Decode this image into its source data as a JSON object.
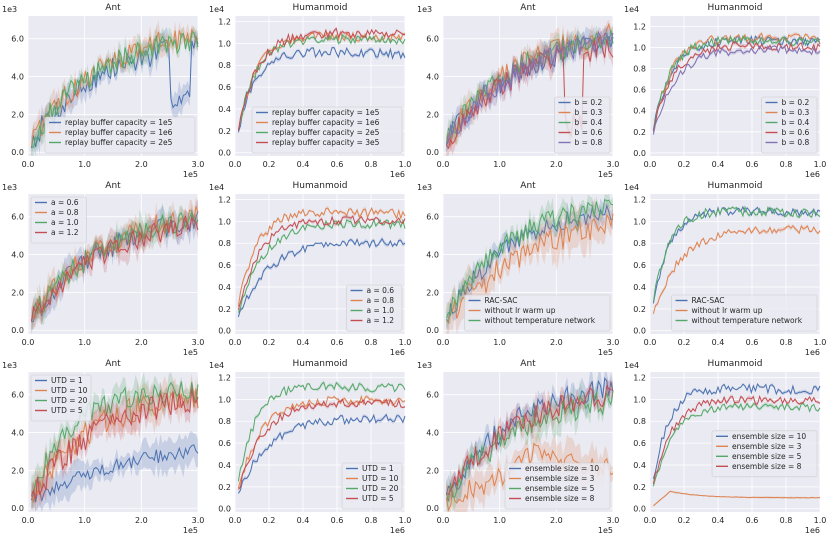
{
  "figure": {
    "rows": 3,
    "cols": 4
  },
  "chart_data": [
    {
      "type": "line",
      "title": "Ant",
      "x_exp": "1e5",
      "y_exp": "1e3",
      "xlim": [
        0,
        3.0
      ],
      "ylim": [
        -0.2,
        7.2
      ],
      "xticks": [
        0.0,
        1.0,
        2.0,
        3.0
      ],
      "xtick_labels": [
        "0.0",
        "1.0",
        "2.0",
        "3.0"
      ],
      "yticks": [
        0,
        2,
        4,
        6
      ],
      "ytick_labels": [
        "0.0",
        "2.0",
        "4.0",
        "6.0"
      ],
      "legend_pos": "lower-right",
      "series": [
        {
          "name": "replay buffer capacity = 1e5",
          "color": "#4c72b0",
          "final": 5.6,
          "k": 0.75,
          "band": 0.7,
          "noise": 0.12,
          "dip": [
            2.7,
            3.0,
            2.8
          ]
        },
        {
          "name": "replay buffer capacity = 1e6",
          "color": "#dd8452",
          "final": 6.2,
          "k": 0.75,
          "band": 0.6,
          "noise": 0.1
        },
        {
          "name": "replay buffer capacity = 2e5",
          "color": "#55a868",
          "final": 6.0,
          "k": 0.8,
          "band": 0.6,
          "noise": 0.1
        }
      ]
    },
    {
      "type": "line",
      "title": "Humanmoid",
      "x_exp": "1e6",
      "y_exp": "1e4",
      "xlim": [
        0,
        1.0
      ],
      "ylim": [
        -0.03,
        1.25
      ],
      "xticks": [
        0.0,
        0.2,
        0.4,
        0.6,
        0.8,
        1.0
      ],
      "xtick_labels": [
        "0.0",
        "0.2",
        "0.4",
        "0.6",
        "0.8",
        "1.0"
      ],
      "yticks": [
        0.0,
        0.2,
        0.4,
        0.6,
        0.8,
        1.0,
        1.2
      ],
      "ytick_labels": [
        "0.0",
        "0.2",
        "0.4",
        "0.6",
        "0.8",
        "1.0",
        "1.2"
      ],
      "legend_pos": "lower-right",
      "series": [
        {
          "name": "replay buffer capacity = 1e5",
          "color": "#4c72b0",
          "final": 0.9,
          "k": 3.2,
          "band": 0.12,
          "noise": 0.05
        },
        {
          "name": "replay buffer capacity = 1e6",
          "color": "#dd8452",
          "final": 1.05,
          "k": 3.0,
          "band": 0.12,
          "noise": 0.04
        },
        {
          "name": "replay buffer capacity = 2e5",
          "color": "#55a868",
          "final": 1.02,
          "k": 3.0,
          "band": 0.12,
          "noise": 0.04
        },
        {
          "name": "replay buffer capacity = 3e5",
          "color": "#c44e52",
          "final": 1.08,
          "k": 2.8,
          "band": 0.12,
          "noise": 0.04
        }
      ]
    },
    {
      "type": "line",
      "title": "Ant",
      "x_exp": "1e5",
      "y_exp": "1e3",
      "xlim": [
        0,
        3.0
      ],
      "ylim": [
        -0.2,
        7.2
      ],
      "xticks": [
        0.0,
        1.0,
        2.0,
        3.0
      ],
      "xtick_labels": [
        "0.0",
        "1.0",
        "2.0",
        "3.0"
      ],
      "yticks": [
        0,
        2,
        4,
        6
      ],
      "ytick_labels": [
        "0.0",
        "2.0",
        "4.0",
        "6.0"
      ],
      "legend_pos": "lower-right",
      "series": [
        {
          "name": "b = 0.2",
          "color": "#4c72b0",
          "final": 5.8,
          "k": 0.75,
          "band": 0.6,
          "noise": 0.1
        },
        {
          "name": "b = 0.3",
          "color": "#dd8452",
          "final": 6.2,
          "k": 0.75,
          "band": 0.6,
          "noise": 0.1
        },
        {
          "name": "b = 0.4",
          "color": "#55a868",
          "final": 6.0,
          "k": 0.8,
          "band": 0.6,
          "noise": 0.1
        },
        {
          "name": "b = 0.6",
          "color": "#c44e52",
          "final": 5.6,
          "k": 0.75,
          "band": 0.7,
          "noise": 0.12,
          "dip": [
            2.3,
            1.5,
            2.1
          ]
        },
        {
          "name": "b = 0.8",
          "color": "#8172b3",
          "final": 5.9,
          "k": 0.7,
          "band": 0.6,
          "noise": 0.1
        }
      ]
    },
    {
      "type": "line",
      "title": "Humanmoid",
      "x_exp": "1e6",
      "y_exp": "1e4",
      "xlim": [
        0,
        1.0
      ],
      "ylim": [
        -0.03,
        1.3
      ],
      "xticks": [
        0.0,
        0.2,
        0.4,
        0.6,
        0.8,
        1.0
      ],
      "xtick_labels": [
        "0.0",
        "0.2",
        "0.4",
        "0.6",
        "0.8",
        "1.0"
      ],
      "yticks": [
        0.0,
        0.2,
        0.4,
        0.6,
        0.8,
        1.0,
        1.2
      ],
      "ytick_labels": [
        "0.0",
        "0.2",
        "0.4",
        "0.6",
        "0.8",
        "1.0",
        "1.2"
      ],
      "legend_pos": "lower-right",
      "series": [
        {
          "name": "b = 0.2",
          "color": "#4c72b0",
          "final": 1.05,
          "k": 3.0,
          "band": 0.12,
          "noise": 0.04
        },
        {
          "name": "b = 0.3",
          "color": "#dd8452",
          "final": 1.08,
          "k": 3.0,
          "band": 0.12,
          "noise": 0.04
        },
        {
          "name": "b = 0.4",
          "color": "#55a868",
          "final": 1.05,
          "k": 3.2,
          "band": 0.12,
          "noise": 0.04
        },
        {
          "name": "b = 0.6",
          "color": "#c44e52",
          "final": 1.0,
          "k": 2.8,
          "band": 0.12,
          "noise": 0.04
        },
        {
          "name": "b = 0.8",
          "color": "#8172b3",
          "final": 0.97,
          "k": 2.4,
          "band": 0.12,
          "noise": 0.04
        }
      ]
    },
    {
      "type": "line",
      "title": "Ant",
      "x_exp": "1e5",
      "y_exp": "1e3",
      "xlim": [
        0,
        3.0
      ],
      "ylim": [
        -0.2,
        7.2
      ],
      "xticks": [
        0.0,
        1.0,
        2.0,
        3.0
      ],
      "xtick_labels": [
        "0.0",
        "1.0",
        "2.0",
        "3.0"
      ],
      "yticks": [
        0,
        2,
        4,
        6
      ],
      "ytick_labels": [
        "0.0",
        "2.0",
        "4.0",
        "6.0"
      ],
      "legend_pos": "upper-left",
      "series": [
        {
          "name": "a = 0.6",
          "color": "#4c72b0",
          "final": 5.8,
          "k": 0.7,
          "band": 0.7,
          "noise": 0.1
        },
        {
          "name": "a = 0.8",
          "color": "#dd8452",
          "final": 6.0,
          "k": 0.75,
          "band": 0.7,
          "noise": 0.1
        },
        {
          "name": "a = 1.0",
          "color": "#55a868",
          "final": 5.9,
          "k": 0.75,
          "band": 0.7,
          "noise": 0.1
        },
        {
          "name": "a = 1.2",
          "color": "#c44e52",
          "final": 5.6,
          "k": 0.7,
          "band": 0.7,
          "noise": 0.1
        }
      ]
    },
    {
      "type": "line",
      "title": "Humanmoid",
      "x_exp": "1e6",
      "y_exp": "1e4",
      "xlim": [
        0,
        1.0
      ],
      "ylim": [
        -0.03,
        1.25
      ],
      "xticks": [
        0.0,
        0.2,
        0.4,
        0.6,
        0.8,
        1.0
      ],
      "xtick_labels": [
        "0.0",
        "0.2",
        "0.4",
        "0.6",
        "0.8",
        "1.0"
      ],
      "yticks": [
        0.0,
        0.2,
        0.4,
        0.6,
        0.8,
        1.0,
        1.2
      ],
      "ytick_labels": [
        "0.0",
        "0.2",
        "0.4",
        "0.6",
        "0.8",
        "1.0",
        "1.2"
      ],
      "legend_pos": "lower-right",
      "series": [
        {
          "name": "a = 0.6",
          "color": "#4c72b0",
          "final": 0.8,
          "k": 1.8,
          "band": 0.12,
          "noise": 0.05
        },
        {
          "name": "a = 0.8",
          "color": "#dd8452",
          "final": 1.07,
          "k": 3.0,
          "band": 0.12,
          "noise": 0.04
        },
        {
          "name": "a = 1.0",
          "color": "#55a868",
          "final": 0.97,
          "k": 2.2,
          "band": 0.12,
          "noise": 0.04
        },
        {
          "name": "a = 1.2",
          "color": "#c44e52",
          "final": 1.0,
          "k": 2.6,
          "band": 0.12,
          "noise": 0.04
        }
      ]
    },
    {
      "type": "line",
      "title": "Ant",
      "x_exp": "1e5",
      "y_exp": "1e3",
      "xlim": [
        0,
        3.0
      ],
      "ylim": [
        -0.2,
        7.2
      ],
      "xticks": [
        0.0,
        1.0,
        2.0,
        3.0
      ],
      "xtick_labels": [
        "0.0",
        "1.0",
        "2.0",
        "3.0"
      ],
      "yticks": [
        0,
        2,
        4,
        6
      ],
      "ytick_labels": [
        "0.0",
        "2.0",
        "4.0",
        "6.0"
      ],
      "legend_pos": "lower-right",
      "series": [
        {
          "name": "RAC-SAC",
          "color": "#4c72b0",
          "final": 6.3,
          "k": 0.8,
          "band": 0.6,
          "noise": 0.08
        },
        {
          "name": "without lr warm up",
          "color": "#dd8452",
          "final": 5.7,
          "k": 0.55,
          "band": 1.1,
          "noise": 0.12
        },
        {
          "name": "without temperature network",
          "color": "#55a868",
          "final": 6.5,
          "k": 0.9,
          "band": 0.6,
          "noise": 0.08
        }
      ]
    },
    {
      "type": "line",
      "title": "Humanmoid",
      "x_exp": "1e6",
      "y_exp": "1e4",
      "xlim": [
        0,
        1.0
      ],
      "ylim": [
        -0.03,
        1.25
      ],
      "xticks": [
        0.0,
        0.2,
        0.4,
        0.6,
        0.8,
        1.0
      ],
      "xtick_labels": [
        "0.0",
        "0.2",
        "0.4",
        "0.6",
        "0.8",
        "1.0"
      ],
      "yticks": [
        0.0,
        0.2,
        0.4,
        0.6,
        0.8,
        1.0,
        1.2
      ],
      "ytick_labels": [
        "0.0",
        "0.2",
        "0.4",
        "0.6",
        "0.8",
        "1.0",
        "1.2"
      ],
      "legend_pos": "lower-right",
      "series": [
        {
          "name": "RAC-SAC",
          "color": "#4c72b0",
          "final": 1.08,
          "k": 3.4,
          "band": 0.1,
          "noise": 0.04
        },
        {
          "name": "without lr warm up",
          "color": "#dd8452",
          "final": 0.92,
          "k": 2.0,
          "band": 0.12,
          "noise": 0.04
        },
        {
          "name": "without temperature network",
          "color": "#55a868",
          "final": 1.07,
          "k": 3.6,
          "band": 0.1,
          "noise": 0.04
        }
      ]
    },
    {
      "type": "line",
      "title": "Ant",
      "x_exp": "1e5",
      "y_exp": "1e3",
      "xlim": [
        0,
        3.0
      ],
      "ylim": [
        -0.2,
        7.2
      ],
      "xticks": [
        0.0,
        1.0,
        2.0,
        3.0
      ],
      "xtick_labels": [
        "0.0",
        "1.0",
        "2.0",
        "3.0"
      ],
      "yticks": [
        0,
        2,
        4,
        6
      ],
      "ytick_labels": [
        "0.0",
        "2.0",
        "4.0",
        "6.0"
      ],
      "legend_pos": "upper-left",
      "series": [
        {
          "name": "UTD = 1",
          "color": "#4c72b0",
          "final": 3.1,
          "k": 0.45,
          "band": 0.9,
          "noise": 0.12
        },
        {
          "name": "UTD = 10",
          "color": "#dd8452",
          "final": 6.0,
          "k": 0.8,
          "band": 0.9,
          "noise": 0.12
        },
        {
          "name": "UTD = 20",
          "color": "#55a868",
          "final": 6.2,
          "k": 1.3,
          "band": 0.8,
          "noise": 0.1
        },
        {
          "name": "UTD = 5",
          "color": "#c44e52",
          "final": 5.8,
          "k": 0.75,
          "band": 0.9,
          "noise": 0.12
        }
      ]
    },
    {
      "type": "line",
      "title": "Humanmoid",
      "x_exp": "1e6",
      "y_exp": "1e4",
      "xlim": [
        0,
        1.0
      ],
      "ylim": [
        -0.03,
        1.25
      ],
      "xticks": [
        0.0,
        0.2,
        0.4,
        0.6,
        0.8,
        1.0
      ],
      "xtick_labels": [
        "0.0",
        "0.2",
        "0.4",
        "0.6",
        "0.8",
        "1.0"
      ],
      "yticks": [
        0.0,
        0.2,
        0.4,
        0.6,
        0.8,
        1.0,
        1.2
      ],
      "ytick_labels": [
        "0.0",
        "0.2",
        "0.4",
        "0.6",
        "0.8",
        "1.0",
        "1.2"
      ],
      "legend_pos": "lower-right",
      "series": [
        {
          "name": "UTD = 1",
          "color": "#4c72b0",
          "final": 0.82,
          "k": 1.8,
          "band": 0.12,
          "noise": 0.05
        },
        {
          "name": "UTD = 10",
          "color": "#dd8452",
          "final": 0.98,
          "k": 2.4,
          "band": 0.12,
          "noise": 0.04
        },
        {
          "name": "UTD = 20",
          "color": "#55a868",
          "final": 1.1,
          "k": 3.2,
          "band": 0.12,
          "noise": 0.04
        },
        {
          "name": "UTD = 5",
          "color": "#c44e52",
          "final": 0.96,
          "k": 2.2,
          "band": 0.12,
          "noise": 0.04
        }
      ]
    },
    {
      "type": "line",
      "title": "Ant",
      "x_exp": "1e5",
      "y_exp": "1e3",
      "xlim": [
        0,
        3.0
      ],
      "ylim": [
        -0.2,
        7.2
      ],
      "xticks": [
        0.0,
        1.0,
        2.0,
        3.0
      ],
      "xtick_labels": [
        "0.0",
        "1.0",
        "2.0",
        "3.0"
      ],
      "yticks": [
        0,
        2,
        4,
        6
      ],
      "ytick_labels": [
        "0.0",
        "2.0",
        "4.0",
        "6.0"
      ],
      "legend_pos": "lower-right",
      "series": [
        {
          "name": "ensemble size = 10",
          "color": "#4c72b0",
          "final": 6.3,
          "k": 0.8,
          "band": 0.7,
          "noise": 0.1
        },
        {
          "name": "ensemble size = 3",
          "color": "#dd8452",
          "final": 2.2,
          "k": 0.7,
          "band": 1.0,
          "noise": 0.25,
          "bump": [
            1.75,
            3.1,
            0.45
          ]
        },
        {
          "name": "ensemble size = 5",
          "color": "#55a868",
          "final": 5.6,
          "k": 0.75,
          "band": 0.9,
          "noise": 0.12
        },
        {
          "name": "ensemble size = 8",
          "color": "#c44e52",
          "final": 6.0,
          "k": 0.8,
          "band": 0.7,
          "noise": 0.1
        }
      ]
    },
    {
      "type": "line",
      "title": "Humanmoid",
      "x_exp": "1e6",
      "y_exp": "1e4",
      "xlim": [
        0,
        1.0
      ],
      "ylim": [
        -0.03,
        1.25
      ],
      "xticks": [
        0.0,
        0.2,
        0.4,
        0.6,
        0.8,
        1.0
      ],
      "xtick_labels": [
        "0.0",
        "0.2",
        "0.4",
        "0.6",
        "0.8",
        "1.0"
      ],
      "yticks": [
        0.0,
        0.2,
        0.4,
        0.6,
        0.8,
        1.0,
        1.2
      ],
      "ytick_labels": [
        "0.0",
        "0.2",
        "0.4",
        "0.6",
        "0.8",
        "1.0",
        "1.2"
      ],
      "legend_pos": "middle-right",
      "series": [
        {
          "name": "ensemble size = 10",
          "color": "#4c72b0",
          "final": 1.08,
          "k": 3.6,
          "band": 0.1,
          "noise": 0.04
        },
        {
          "name": "ensemble size = 3",
          "color": "#dd8452",
          "final": 0.1,
          "k": 6.0,
          "band": 0.06,
          "noise": 0.02,
          "peak": [
            0.12,
            0.16
          ]
        },
        {
          "name": "ensemble size = 5",
          "color": "#55a868",
          "final": 0.92,
          "k": 2.8,
          "band": 0.12,
          "noise": 0.04
        },
        {
          "name": "ensemble size = 8",
          "color": "#c44e52",
          "final": 0.98,
          "k": 3.0,
          "band": 0.12,
          "noise": 0.04
        }
      ]
    }
  ]
}
